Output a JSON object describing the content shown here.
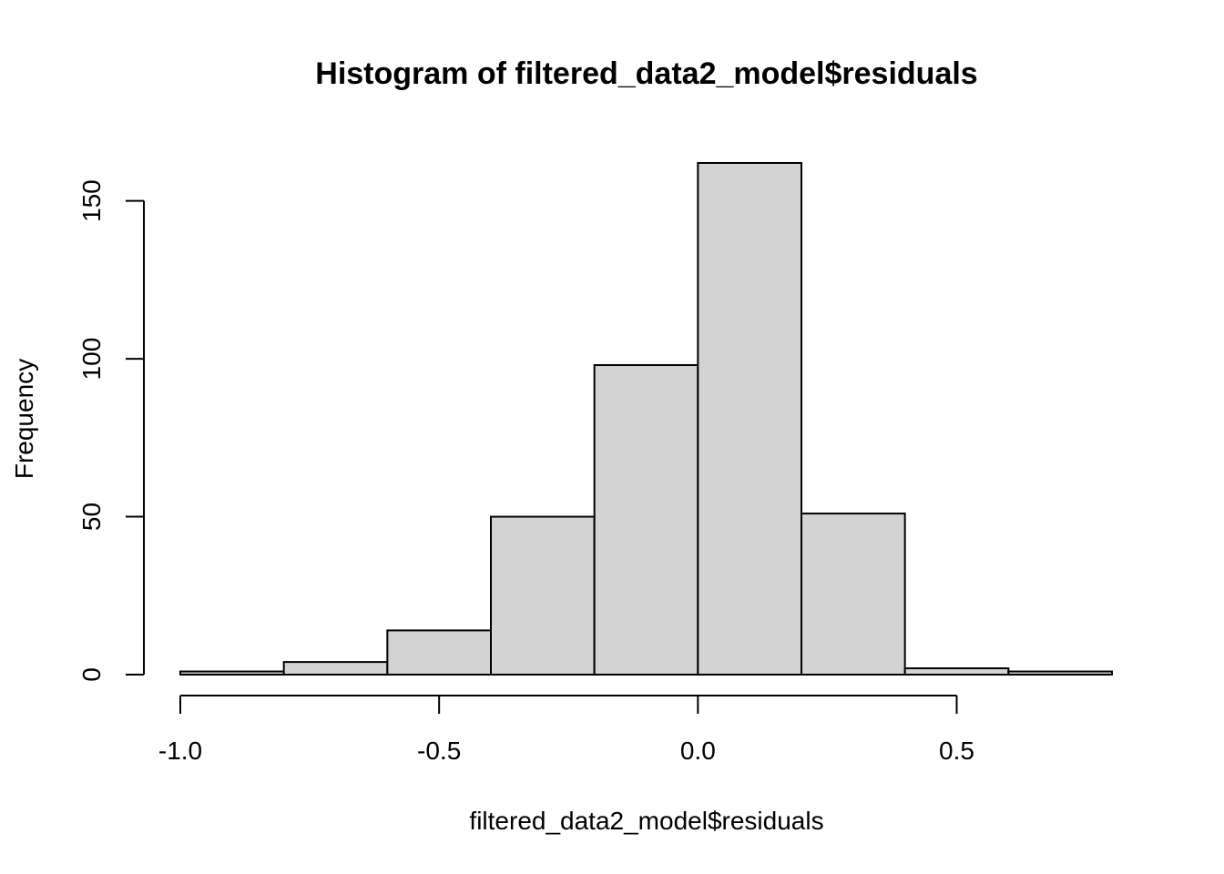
{
  "chart_data": {
    "type": "bar",
    "title": "Histogram of filtered_data2_model$residuals",
    "xlabel": "filtered_data2_model$residuals",
    "ylabel": "Frequency",
    "bins": [
      {
        "start": -1.0,
        "end": -0.8,
        "count": 1
      },
      {
        "start": -0.8,
        "end": -0.6,
        "count": 4
      },
      {
        "start": -0.6,
        "end": -0.4,
        "count": 14
      },
      {
        "start": -0.4,
        "end": -0.2,
        "count": 50
      },
      {
        "start": -0.2,
        "end": 0.0,
        "count": 98
      },
      {
        "start": 0.0,
        "end": 0.2,
        "count": 162
      },
      {
        "start": 0.2,
        "end": 0.4,
        "count": 51
      },
      {
        "start": 0.4,
        "end": 0.6,
        "count": 2
      },
      {
        "start": 0.6,
        "end": 0.8,
        "count": 1
      }
    ],
    "xlim": [
      -1.0,
      0.8
    ],
    "ylim": [
      0,
      162
    ],
    "x_ticks": [
      -1.0,
      -0.5,
      0.0,
      0.5
    ],
    "x_tick_labels": [
      "-1.0",
      "-0.5",
      "0.0",
      "0.5"
    ],
    "y_ticks": [
      0,
      50,
      100,
      150
    ],
    "y_tick_labels": [
      "0",
      "50",
      "100",
      "150"
    ],
    "bar_fill": "#d3d3d3",
    "bar_stroke": "#000000",
    "grid": false,
    "legend": "none"
  }
}
